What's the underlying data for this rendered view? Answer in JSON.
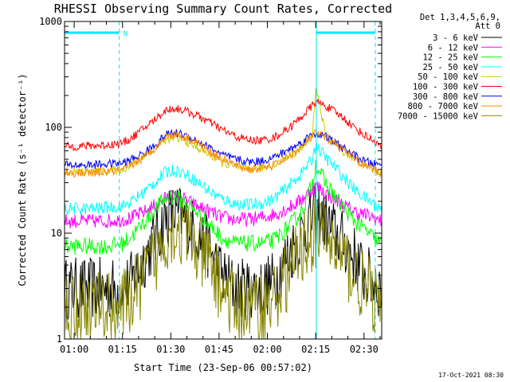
{
  "chart_data": {
    "type": "line",
    "title": "RHESSI Observing Summary Count Rates, Corrected",
    "xlabel": "Start Time (23-Sep-06 00:57:02)",
    "ylabel": "Corrected Count Rate (s⁻¹ detector⁻¹)",
    "y_scale": "log",
    "ylim": [
      1,
      1000
    ],
    "xlim_minutes": [
      57.0,
      155.5
    ],
    "x_ticks": [
      {
        "label": "01:00",
        "minutes": 60
      },
      {
        "label": "01:15",
        "minutes": 75
      },
      {
        "label": "01:30",
        "minutes": 90
      },
      {
        "label": "01:45",
        "minutes": 105
      },
      {
        "label": "02:00",
        "minutes": 120
      },
      {
        "label": "02:15",
        "minutes": 135
      },
      {
        "label": "02:30",
        "minutes": 150
      }
    ],
    "y_ticks": [
      {
        "label": "1",
        "value": 1
      },
      {
        "label": "10",
        "value": 10
      },
      {
        "label": "100",
        "value": 100
      },
      {
        "label": "1000",
        "value": 1000
      }
    ],
    "legend_header": [
      "Det 1,3,4,5,6,9,",
      "Att 0"
    ],
    "legend_placement": "right",
    "time_points_minutes": [
      57,
      60,
      65,
      70,
      75,
      78,
      82,
      86,
      88,
      90,
      92,
      94,
      98,
      102,
      106,
      110,
      114,
      118,
      122,
      126,
      130,
      132,
      134,
      135,
      136,
      138,
      141,
      144,
      147,
      150,
      153,
      155
    ],
    "series": [
      {
        "name": "3 - 6 keV",
        "color": "#000000",
        "noise": 0.3,
        "values": [
          3,
          3,
          3,
          3,
          3,
          3.5,
          6,
          10,
          13,
          15,
          15,
          14,
          10,
          7,
          4,
          3,
          3,
          3,
          3.5,
          6,
          9,
          12,
          14,
          15,
          15,
          13,
          10,
          8,
          6,
          4,
          3.5,
          3
        ]
      },
      {
        "name": "6 - 12 keV",
        "color": "#ff00ff",
        "noise": 0.07,
        "values": [
          13,
          13,
          13,
          13,
          13.5,
          14,
          16,
          19,
          21,
          22,
          22,
          21,
          18,
          16,
          14,
          13.5,
          13.5,
          14,
          15,
          17,
          20,
          23,
          26,
          28,
          27,
          24,
          21,
          18,
          16,
          15,
          14,
          13
        ]
      },
      {
        "name": "12 - 25 keV",
        "color": "#00ff00",
        "noise": 0.08,
        "values": [
          7.5,
          7.5,
          7.5,
          7.5,
          8,
          9.5,
          13,
          18,
          21,
          22,
          22,
          20,
          16,
          12,
          9,
          8,
          8,
          8,
          8.5,
          11,
          15,
          20,
          30,
          45,
          40,
          30,
          22,
          17,
          13,
          11,
          9,
          8
        ]
      },
      {
        "name": "25 - 50 keV",
        "color": "#00ffff",
        "noise": 0.06,
        "values": [
          17,
          17,
          17,
          17.5,
          18,
          20,
          25,
          32,
          37,
          39,
          39,
          37,
          31,
          25,
          21,
          19,
          18.5,
          19,
          21,
          27,
          35,
          42,
          50,
          70,
          62,
          52,
          42,
          33,
          26,
          22,
          19,
          17
        ]
      },
      {
        "name": "50 - 100 keV",
        "color": "#cccc00",
        "noise": 0.04,
        "values": [
          38,
          38,
          38,
          38.5,
          40,
          45,
          55,
          67,
          75,
          78,
          78,
          75,
          65,
          55,
          46,
          42,
          40,
          41,
          44,
          52,
          62,
          70,
          85,
          240,
          180,
          85,
          70,
          58,
          50,
          44,
          40,
          38
        ]
      },
      {
        "name": "100 - 300 keV",
        "color": "#ff0000",
        "noise": 0.04,
        "values": [
          66,
          66,
          67,
          68,
          71,
          80,
          100,
          125,
          142,
          150,
          150,
          145,
          130,
          112,
          95,
          82,
          76,
          75,
          80,
          95,
          120,
          140,
          160,
          175,
          170,
          160,
          140,
          120,
          100,
          85,
          75,
          66
        ]
      },
      {
        "name": "300 - 800 keV",
        "color": "#0000ff",
        "noise": 0.04,
        "values": [
          44,
          44,
          44,
          45,
          46,
          50,
          58,
          72,
          83,
          88,
          88,
          85,
          75,
          64,
          55,
          50,
          47,
          48,
          52,
          60,
          70,
          78,
          85,
          88,
          86,
          82,
          72,
          62,
          54,
          48,
          45,
          44
        ]
      },
      {
        "name": "800 - 7000 keV",
        "color": "#ff8800",
        "noise": 0.04,
        "values": [
          37,
          37,
          37,
          38,
          39,
          44,
          53,
          68,
          80,
          86,
          86,
          82,
          72,
          60,
          50,
          44,
          40,
          41,
          44,
          52,
          62,
          72,
          82,
          88,
          85,
          80,
          70,
          60,
          50,
          44,
          40,
          37
        ]
      },
      {
        "name": "7000 - 15000 keV",
        "color": "#888800",
        "noise": 0.35,
        "values": [
          2,
          2,
          2,
          2,
          2,
          2.5,
          4,
          6.5,
          9,
          11,
          11,
          10,
          7,
          5,
          3,
          2,
          2,
          2,
          2.3,
          4,
          6,
          8.5,
          9.5,
          10,
          10,
          9.5,
          7,
          5.5,
          4,
          3,
          2.5,
          2
        ]
      }
    ],
    "attenuator_intervals": [
      {
        "label": "",
        "start_minutes": 57.0,
        "end_minutes": 74.0
      },
      {
        "label": "",
        "start_minutes": 135.2,
        "end_minutes": 153.5
      }
    ],
    "attenuator_flag": "N",
    "dashed_markers_minutes": [
      74.0,
      153.5
    ],
    "solid_markers_minutes": [
      135.2
    ],
    "grid": false
  },
  "colors": {
    "background": "#ffffff",
    "axes": "#000000",
    "attenuator": "#00e5ff"
  },
  "timestamp": "17-Oct-2021 08:30"
}
